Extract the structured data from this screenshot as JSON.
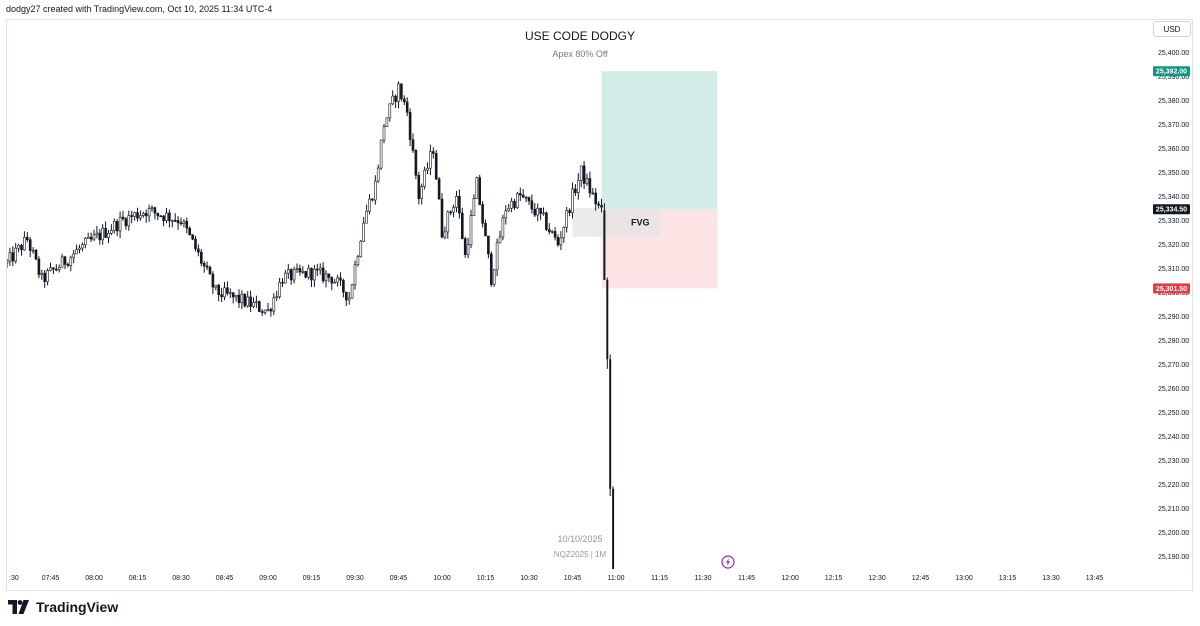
{
  "header": {
    "attribution": "dodgy27 created with TradingView.com, Oct 10, 2025 11:34 UTC-4"
  },
  "currency": "USD",
  "footer": {
    "brand": "TradingView"
  },
  "chart_data": {
    "type": "candlestick",
    "title": "USE CODE DODGY",
    "subtitle": "Apex 80% Off",
    "watermark": {
      "date": "10/10/2025",
      "symbol": "NQZ2025 | 1M"
    },
    "ylim": [
      25185,
      25405
    ],
    "y_ticks": [
      "25,190.00",
      "25,200.00",
      "25,210.00",
      "25,220.00",
      "25,230.00",
      "25,240.00",
      "25,250.00",
      "25,260.00",
      "25,270.00",
      "25,280.00",
      "25,290.00",
      "25,300.00",
      "25,310.00",
      "25,320.00",
      "25,330.00",
      "25,340.00",
      "25,350.00",
      "25,360.00",
      "25,370.00",
      "25,380.00",
      "25,390.00",
      "25,400.00"
    ],
    "x_ticks": [
      ":30",
      "07:45",
      "08:00",
      "08:15",
      "08:30",
      "08:45",
      "09:00",
      "09:15",
      "09:30",
      "09:45",
      "10:00",
      "10:15",
      "10:30",
      "10:45",
      "11:00",
      "11:15",
      "11:30",
      "11:45",
      "12:00",
      "12:15",
      "12:30",
      "12:45",
      "13:00",
      "13:15",
      "13:30",
      "13:45"
    ],
    "price_tags": [
      {
        "label": "25,392.00",
        "value": 25392.0,
        "color": "#089981"
      },
      {
        "label": "25,334.50",
        "value": 25334.5,
        "color": "#131722"
      },
      {
        "label": "25,301.50",
        "value": 25301.5,
        "color": "#f23645"
      }
    ],
    "position": {
      "start": "10:55",
      "end": "11:35",
      "entry": 25334.5,
      "target": 25392.0,
      "stop": 25301.5,
      "profit_color": "#d2ece8",
      "loss_color": "#fde3e4"
    },
    "fvg": {
      "label": "FVG",
      "start": "10:45",
      "end": "11:15",
      "top": 25335,
      "bottom": 25323,
      "color": "#e4e4e4"
    },
    "anchors": [
      [
        "07:30",
        25312
      ],
      [
        "07:37",
        25322
      ],
      [
        "07:42",
        25305
      ],
      [
        "07:55",
        25318
      ],
      [
        "08:10",
        25330
      ],
      [
        "08:18",
        25334
      ],
      [
        "08:30",
        25330
      ],
      [
        "08:35",
        25318
      ],
      [
        "08:42",
        25300
      ],
      [
        "08:52",
        25296
      ],
      [
        "09:00",
        25292
      ],
      [
        "09:05",
        25306
      ],
      [
        "09:15",
        25308
      ],
      [
        "09:22",
        25306
      ],
      [
        "09:28",
        25298
      ],
      [
        "09:33",
        25330
      ],
      [
        "09:37",
        25345
      ],
      [
        "09:40",
        25370
      ],
      [
        "09:45",
        25385
      ],
      [
        "09:48",
        25375
      ],
      [
        "09:52",
        25340
      ],
      [
        "09:57",
        25360
      ],
      [
        "10:00",
        25325
      ],
      [
        "10:05",
        25340
      ],
      [
        "10:08",
        25315
      ],
      [
        "10:12",
        25345
      ],
      [
        "10:17",
        25306
      ],
      [
        "10:22",
        25335
      ],
      [
        "10:27",
        25340
      ],
      [
        "10:35",
        25330
      ],
      [
        "10:40",
        25320
      ],
      [
        "10:45",
        25340
      ],
      [
        "10:48",
        25350
      ],
      [
        "10:52",
        25340
      ],
      [
        "10:55",
        25333
      ]
    ],
    "crash_candles": [
      {
        "time": "10:56",
        "open": 25334,
        "high": 25337,
        "low": 25305,
        "close": 25305
      },
      {
        "time": "10:57",
        "open": 25305,
        "high": 25306,
        "low": 25268,
        "close": 25272
      },
      {
        "time": "10:58",
        "open": 25272,
        "high": 25274,
        "low": 25215,
        "close": 25218
      },
      {
        "time": "10:59",
        "open": 25218,
        "high": 25219,
        "low": 25170,
        "close": 25170
      }
    ],
    "grid": false
  }
}
